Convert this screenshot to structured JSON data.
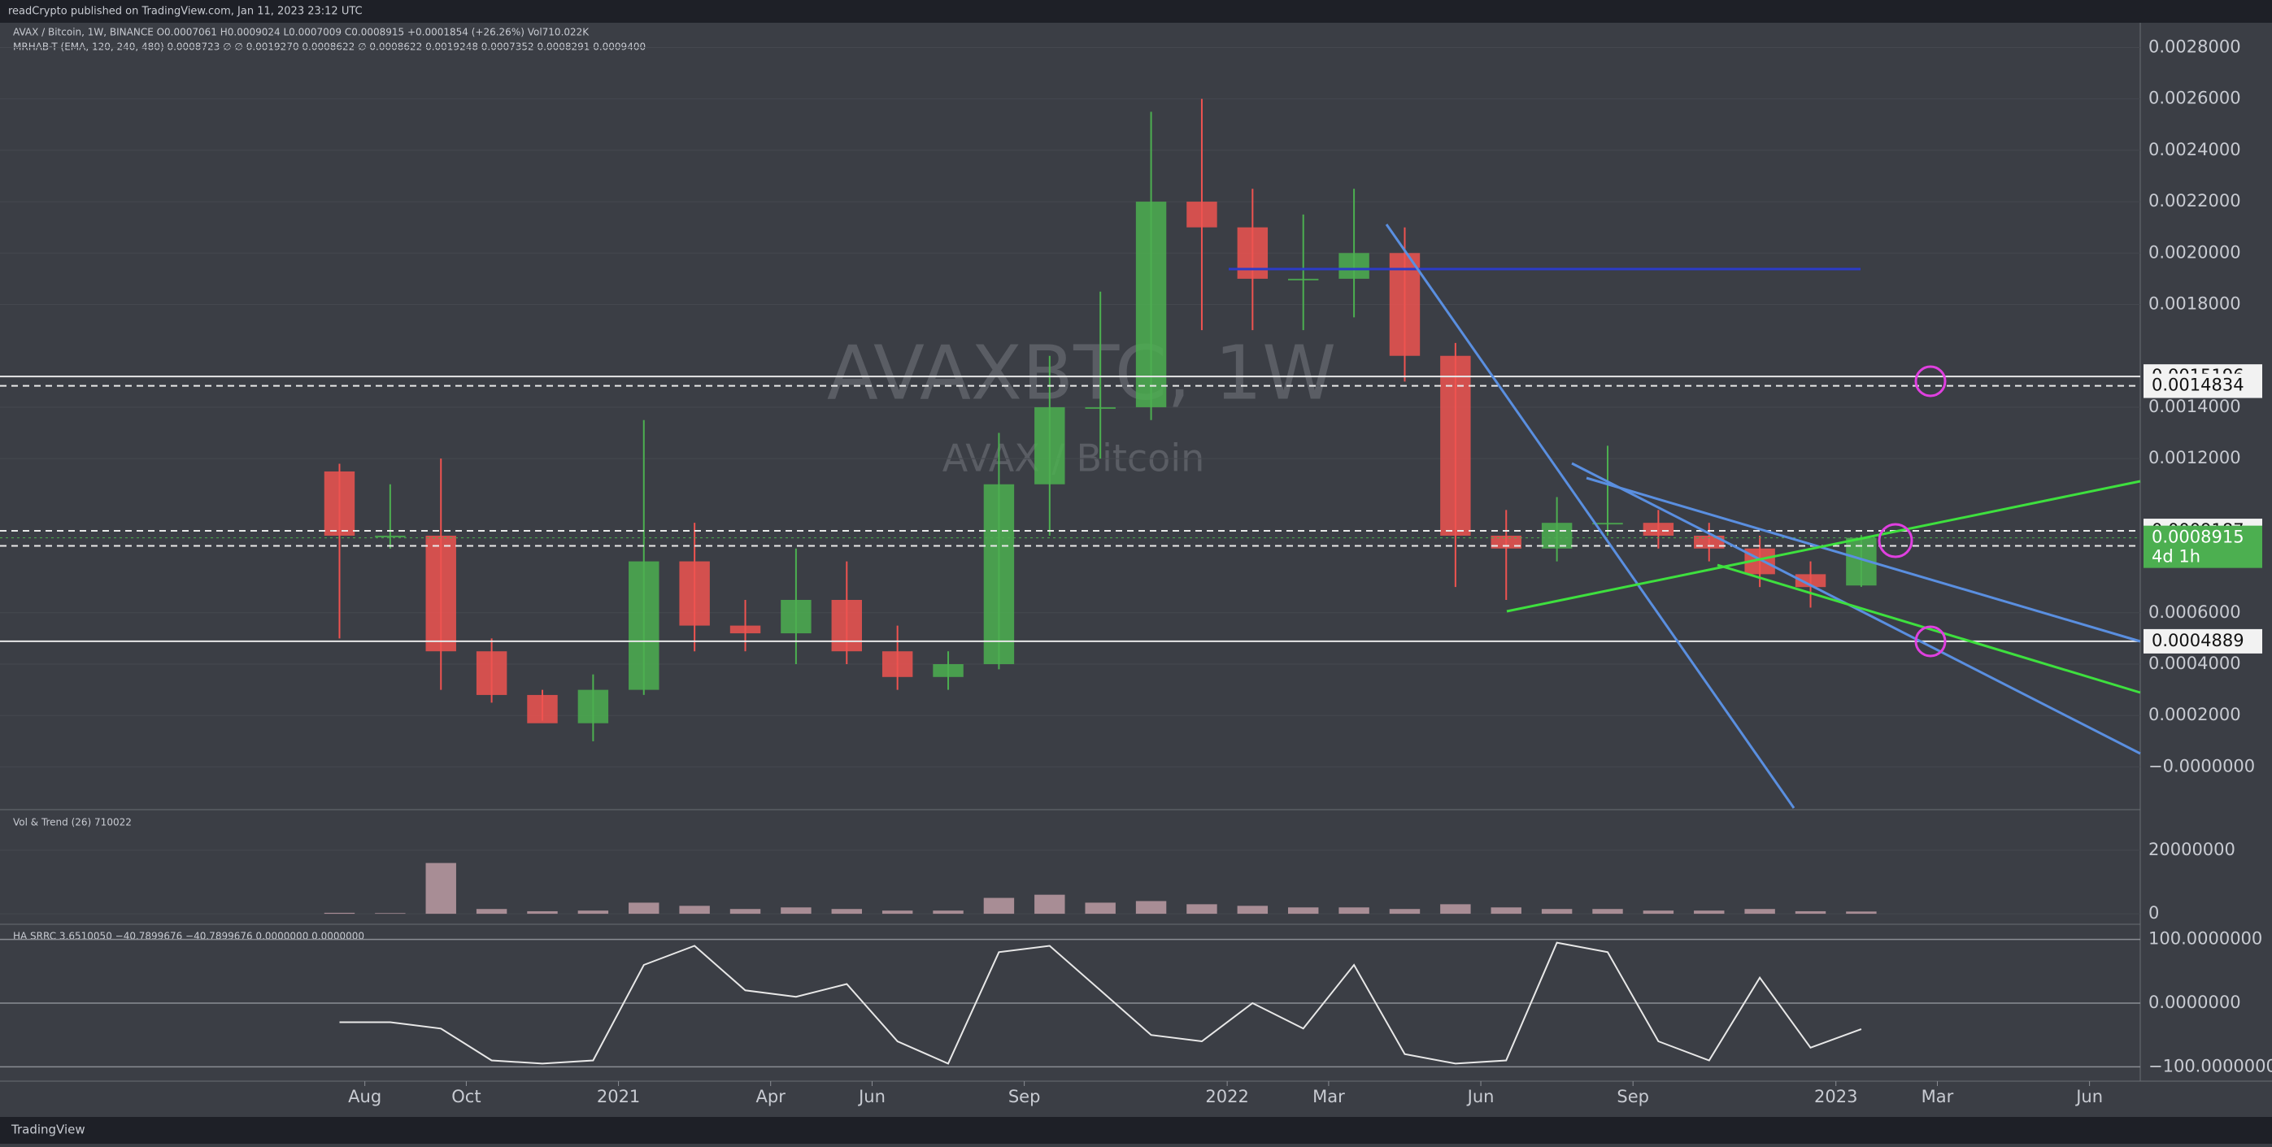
{
  "chart_data": [
    {
      "type": "candlestick",
      "publisher": "readCrypto published on TradingView.com, Jan 11, 2023 23:12 UTC",
      "legend": "AVAX / Bitcoin, 1W, BINANCE  O0.0007061  H0.0009024  L0.0007009  C0.0008915  +0.0001854 (+26.26%)  Vol710.022K",
      "indicator": "MRHAB-T (EMA, 120, 240, 480)  0.0008723  ∅  ∅  0.0019270  0.0008622  ∅  0.0008622  0.0019248  0.0007352  0.0008291  0.0009400",
      "watermark": "AVAXBTC, 1W",
      "watermark_sub": "AVAX / Bitcoin",
      "brand": "TradingView",
      "x": [
        "2020-07",
        "2020-08",
        "2020-09",
        "2020-10",
        "2020-11",
        "2020-12",
        "2021-01",
        "2021-02",
        "2021-03",
        "2021-04",
        "2021-05",
        "2021-06",
        "2021-07",
        "2021-08",
        "2021-09",
        "2021-10",
        "2021-11",
        "2021-12",
        "2022-01",
        "2022-02",
        "2022-03",
        "2022-04",
        "2022-05",
        "2022-06",
        "2022-07",
        "2022-08",
        "2022-09",
        "2022-10",
        "2022-11",
        "2022-12",
        "2023-01"
      ],
      "open": [
        0.00115,
        0.0009,
        0.0009,
        0.00045,
        0.00028,
        0.00017,
        0.0003,
        0.0008,
        0.00055,
        0.00052,
        0.00065,
        0.00045,
        0.00035,
        0.0004,
        0.0011,
        0.0014,
        0.0014,
        0.0022,
        0.0021,
        0.0019,
        0.0019,
        0.002,
        0.0016,
        0.0009,
        0.00085,
        0.00095,
        0.00095,
        0.0009,
        0.00085,
        0.00075,
        0.0007061
      ],
      "high": [
        0.00118,
        0.0011,
        0.0012,
        0.0005,
        0.0003,
        0.00036,
        0.00135,
        0.00095,
        0.00065,
        0.00085,
        0.0008,
        0.00055,
        0.00045,
        0.0013,
        0.0016,
        0.00185,
        0.00255,
        0.0026,
        0.00225,
        0.00215,
        0.00225,
        0.0021,
        0.00165,
        0.001,
        0.00105,
        0.00125,
        0.001,
        0.00095,
        0.0009,
        0.0008,
        0.0009024
      ],
      "low": [
        0.0005,
        0.00085,
        0.0003,
        0.00025,
        0.00018,
        0.0001,
        0.00028,
        0.00045,
        0.00045,
        0.0004,
        0.0004,
        0.0003,
        0.0003,
        0.00038,
        0.0009,
        0.0012,
        0.00135,
        0.0017,
        0.0017,
        0.0017,
        0.00175,
        0.0015,
        0.0007,
        0.00065,
        0.0008,
        0.0009,
        0.00085,
        0.0008,
        0.0007,
        0.00062,
        0.0007009
      ],
      "close": [
        0.0009,
        0.0009,
        0.00045,
        0.00028,
        0.00017,
        0.0003,
        0.0008,
        0.00055,
        0.00052,
        0.00065,
        0.00045,
        0.00035,
        0.0004,
        0.0011,
        0.0014,
        0.0014,
        0.0022,
        0.0021,
        0.0019,
        0.0019,
        0.002,
        0.0016,
        0.0009,
        0.00085,
        0.00095,
        0.00095,
        0.0009,
        0.00085,
        0.00075,
        0.0007,
        0.0008915
      ],
      "up_color": "#4caf50",
      "down_color": "#ef5350",
      "xlim": [
        "2020-01",
        "2023-07"
      ],
      "ylim": [
        -0.00016,
        0.00289
      ],
      "yticks": [
        {
          "value": 0.0028,
          "label": "0.0028000"
        },
        {
          "value": 0.0026,
          "label": "0.0026000"
        },
        {
          "value": 0.0024,
          "label": "0.0024000"
        },
        {
          "value": 0.0022,
          "label": "0.0022000"
        },
        {
          "value": 0.002,
          "label": "0.0020000"
        },
        {
          "value": 0.0018,
          "label": "0.0018000"
        },
        {
          "value": 0.0014,
          "label": "0.0014000"
        },
        {
          "value": 0.0012,
          "label": "0.0012000"
        },
        {
          "value": 0.0006,
          "label": "0.0006000"
        },
        {
          "value": 0.0004,
          "label": "0.0004000"
        },
        {
          "value": 0.0002,
          "label": "0.0002000"
        },
        {
          "value": 0,
          "label": "−0.0000000"
        }
      ],
      "xticks": [
        {
          "value": "2020-08",
          "label": "Aug"
        },
        {
          "value": "2020-10",
          "label": "Oct"
        },
        {
          "value": "2021-01",
          "label": "2021"
        },
        {
          "value": "2021-04",
          "label": "Apr"
        },
        {
          "value": "2021-06",
          "label": "Jun"
        },
        {
          "value": "2021-09",
          "label": "Sep"
        },
        {
          "value": "2022-01",
          "label": "2022"
        },
        {
          "value": "2022-03",
          "label": "Mar"
        },
        {
          "value": "2022-06",
          "label": "Jun"
        },
        {
          "value": "2022-09",
          "label": "Sep"
        },
        {
          "value": "2023-01",
          "label": "2023"
        },
        {
          "value": "2023-03",
          "label": "Mar"
        },
        {
          "value": "2023-06",
          "label": "Jun"
        }
      ],
      "levels": [
        {
          "value": 0.0015196,
          "style": "solid"
        },
        {
          "value": 0.0014834,
          "style": "dashed"
        },
        {
          "value": 0.0009187,
          "style": "dashed"
        },
        {
          "value": 0.0008602,
          "style": "dashed"
        },
        {
          "value": 0.0004889,
          "style": "solid"
        }
      ],
      "countdown": "4d 1h"
    },
    {
      "type": "bar",
      "title": "Vol & Trend (26)  710022",
      "x": [
        "2020-07",
        "2020-08",
        "2020-09",
        "2020-10",
        "2020-11",
        "2020-12",
        "2021-01",
        "2021-02",
        "2021-03",
        "2021-04",
        "2021-05",
        "2021-06",
        "2021-07",
        "2021-08",
        "2021-09",
        "2021-10",
        "2021-11",
        "2021-12",
        "2022-01",
        "2022-02",
        "2022-03",
        "2022-04",
        "2022-05",
        "2022-06",
        "2022-07",
        "2022-08",
        "2022-09",
        "2022-10",
        "2022-11",
        "2022-12",
        "2023-01"
      ],
      "values": [
        300000,
        200000,
        16000000,
        1500000,
        800000,
        1000000,
        3500000,
        2500000,
        1500000,
        2000000,
        1500000,
        1000000,
        1000000,
        5000000,
        6000000,
        3500000,
        4000000,
        3000000,
        2500000,
        2000000,
        2000000,
        1500000,
        3000000,
        2000000,
        1500000,
        1500000,
        1000000,
        1000000,
        1500000,
        800000,
        710022
      ],
      "color": "#a88d95",
      "xlim": [
        "2020-01",
        "2023-07"
      ],
      "ylim": [
        -2800000,
        32300000
      ],
      "yticks": [
        20000000,
        0
      ]
    },
    {
      "type": "line",
      "title": "HA SRRC  3.6510050  −40.7899676  −40.7899676  0.0000000  0.0000000",
      "x": [
        "2020-07",
        "2020-08",
        "2020-09",
        "2020-10",
        "2020-11",
        "2020-12",
        "2021-01",
        "2021-02",
        "2021-03",
        "2021-04",
        "2021-05",
        "2021-06",
        "2021-07",
        "2021-08",
        "2021-09",
        "2021-10",
        "2021-11",
        "2021-12",
        "2022-01",
        "2022-02",
        "2022-03",
        "2022-04",
        "2022-05",
        "2022-06",
        "2022-07",
        "2022-08",
        "2022-09",
        "2022-10",
        "2022-11",
        "2022-12",
        "2023-01"
      ],
      "values": [
        -30,
        -30,
        -40,
        -90,
        -95,
        -90,
        60,
        90,
        20,
        10,
        30,
        -60,
        -95,
        80,
        90,
        20,
        -50,
        -60,
        0,
        -40,
        60,
        -80,
        -95,
        -90,
        95,
        80,
        -60,
        -90,
        40,
        -70,
        -40.8
      ],
      "color": "#e8e8e8",
      "xlim": [
        "2020-01",
        "2023-07"
      ],
      "ylim": [
        -120,
        120
      ],
      "yticks": [
        {
          "value": 100,
          "label": "100.0000000"
        },
        {
          "value": 0,
          "label": "0.0000000"
        },
        {
          "value": -100,
          "label": "−100.0000000"
        }
      ]
    }
  ]
}
